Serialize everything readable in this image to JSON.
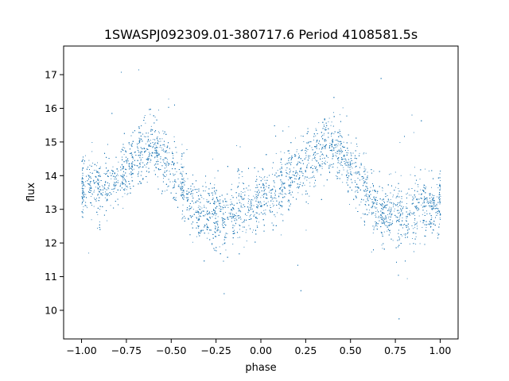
{
  "chart_data": {
    "type": "scatter",
    "title": "1SWASPJ092309.01-380717.6 Period 4108581.5s",
    "xlabel": "phase",
    "ylabel": "flux",
    "xlim": [
      -1.1,
      1.1
    ],
    "ylim": [
      9.15,
      17.85
    ],
    "xticks": [
      -1.0,
      -0.75,
      -0.5,
      -0.25,
      0.0,
      0.25,
      0.5,
      0.75,
      1.0
    ],
    "xtick_labels": [
      "−1.00",
      "−0.75",
      "−0.50",
      "−0.25",
      "0.00",
      "0.25",
      "0.50",
      "0.75",
      "1.00"
    ],
    "yticks": [
      10,
      11,
      12,
      13,
      14,
      15,
      16,
      17
    ],
    "ytick_labels": [
      "10",
      "11",
      "12",
      "13",
      "14",
      "15",
      "16",
      "17"
    ],
    "grid": false,
    "legend": "none",
    "marker_color": "#1f77b4",
    "series": [
      {
        "points_description_note": "",
        "trend": {
          "x": [
            -1.0,
            -0.95,
            -0.9,
            -0.85,
            -0.8,
            -0.75,
            -0.7,
            -0.65,
            -0.6,
            -0.55,
            -0.5,
            -0.45,
            -0.4,
            -0.35,
            -0.3,
            -0.25,
            -0.2,
            -0.15,
            -0.1,
            -0.05,
            0.0,
            0.05,
            0.1,
            0.15,
            0.2,
            0.25,
            0.3,
            0.35,
            0.4,
            0.45,
            0.5,
            0.55,
            0.6,
            0.65,
            0.7,
            0.75,
            0.8,
            0.85,
            0.9,
            0.95,
            1.0
          ],
          "y": [
            13.6,
            13.7,
            13.6,
            13.8,
            14.0,
            14.2,
            14.5,
            14.8,
            14.9,
            14.6,
            14.2,
            13.8,
            13.3,
            12.9,
            12.8,
            12.9,
            12.6,
            12.9,
            13.2,
            13.1,
            13.4,
            13.3,
            13.6,
            13.9,
            14.0,
            14.3,
            14.6,
            14.9,
            14.9,
            14.7,
            14.2,
            13.8,
            13.4,
            12.9,
            12.8,
            13.0,
            12.6,
            12.9,
            13.1,
            13.0,
            13.3
          ]
        },
        "scatter_sd": 0.45,
        "n_points": 9000
      }
    ]
  }
}
